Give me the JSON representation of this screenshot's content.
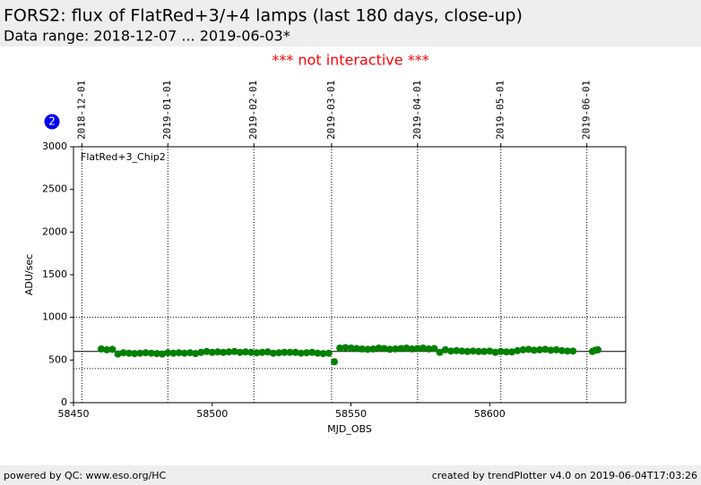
{
  "header": {
    "title": "FORS2: flux of FlatRed+3/+4 lamps (last 180 days, close-up)",
    "subtitle": "Data range: 2018-12-07 ... 2019-06-03*"
  },
  "notice": "*** not interactive ***",
  "badge": "2",
  "chart_data": {
    "type": "scatter",
    "series_label": "FlatRed+3_Chip2",
    "ylabel": "ADU/sec",
    "xlabel": "MJD_OBS",
    "color": "#008000",
    "xlim": [
      58450,
      58649
    ],
    "ylim": [
      0,
      3000
    ],
    "xticks": [
      58450,
      58500,
      58550,
      58600
    ],
    "yticks": [
      0,
      500,
      1000,
      1500,
      2000,
      2500,
      3000
    ],
    "top_ticks": [
      {
        "value": 58453,
        "label": "2018-12-01"
      },
      {
        "value": 58484,
        "label": "2019-01-01"
      },
      {
        "value": 58515,
        "label": "2019-02-01"
      },
      {
        "value": 58543,
        "label": "2019-03-01"
      },
      {
        "value": 58574,
        "label": "2019-04-01"
      },
      {
        "value": 58604,
        "label": "2019-05-01"
      },
      {
        "value": 58635,
        "label": "2019-06-01"
      }
    ],
    "hlines": [
      {
        "value": 600,
        "style": "solid"
      },
      {
        "value": 1000,
        "style": "dotted"
      },
      {
        "value": 400,
        "style": "dotted"
      }
    ],
    "x": [
      58460,
      58462,
      58464,
      58466,
      58468,
      58470,
      58472,
      58474,
      58476,
      58478,
      58480,
      58482,
      58484,
      58486,
      58488,
      58490,
      58492,
      58494,
      58496,
      58498,
      58500,
      58502,
      58504,
      58506,
      58508,
      58510,
      58512,
      58514,
      58516,
      58518,
      58520,
      58522,
      58524,
      58526,
      58528,
      58530,
      58532,
      58534,
      58536,
      58538,
      58540,
      58542,
      58544,
      58546,
      58548,
      58550,
      58552,
      58554,
      58556,
      58558,
      58560,
      58562,
      58564,
      58566,
      58568,
      58570,
      58572,
      58574,
      58576,
      58578,
      58580,
      58582,
      58584,
      58586,
      58588,
      58590,
      58592,
      58594,
      58596,
      58598,
      58600,
      58602,
      58604,
      58606,
      58608,
      58610,
      58612,
      58614,
      58616,
      58618,
      58620,
      58622,
      58624,
      58626,
      58628,
      58630,
      58637,
      58638,
      58639
    ],
    "values": [
      630,
      620,
      625,
      570,
      585,
      580,
      575,
      580,
      585,
      580,
      575,
      570,
      585,
      580,
      585,
      580,
      585,
      575,
      590,
      600,
      590,
      595,
      590,
      595,
      600,
      590,
      595,
      590,
      585,
      590,
      595,
      580,
      585,
      590,
      590,
      590,
      580,
      585,
      590,
      580,
      575,
      580,
      480,
      640,
      645,
      640,
      635,
      630,
      625,
      630,
      640,
      635,
      625,
      630,
      635,
      640,
      630,
      635,
      640,
      630,
      635,
      590,
      620,
      605,
      610,
      605,
      600,
      605,
      600,
      600,
      605,
      590,
      600,
      595,
      595,
      610,
      620,
      625,
      615,
      620,
      625,
      615,
      620,
      610,
      605,
      605,
      600,
      615,
      620
    ]
  },
  "footer": {
    "left": "powered by QC: www.eso.org/HC",
    "right": "created by trendPlotter v4.0 on 2019-06-04T17:03:26"
  }
}
